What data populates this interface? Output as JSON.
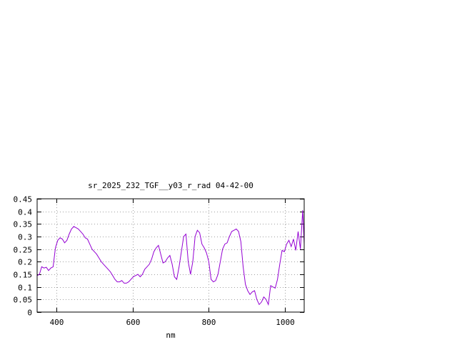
{
  "chart_data": {
    "type": "line",
    "title": "sr_2025_232_TGF__y03_r_rad 04-42-00",
    "xlabel": "nm",
    "ylabel": "",
    "xlim": [
      350,
      1050
    ],
    "ylim": [
      0,
      0.45
    ],
    "xticks": [
      400,
      600,
      800,
      1000
    ],
    "xtick_labels": [
      "400",
      "600",
      "800",
      "1000"
    ],
    "yticks": [
      0,
      0.05,
      0.1,
      0.15,
      0.2,
      0.25,
      0.3,
      0.35,
      0.4,
      0.45
    ],
    "ytick_labels": [
      "0",
      "0.05",
      "0.1",
      "0.15",
      "0.2",
      "0.25",
      "0.3",
      "0.35",
      "0.4",
      "0.45"
    ],
    "grid": true,
    "legend": "none",
    "series": [
      {
        "color": "#9400d3",
        "x": [
          350,
          356,
          362,
          368,
          374,
          380,
          386,
          392,
          398,
          404,
          410,
          416,
          422,
          428,
          434,
          440,
          446,
          452,
          458,
          464,
          470,
          476,
          482,
          488,
          494,
          500,
          506,
          512,
          518,
          524,
          530,
          536,
          542,
          548,
          554,
          560,
          566,
          572,
          578,
          584,
          590,
          596,
          602,
          608,
          614,
          620,
          626,
          632,
          638,
          644,
          650,
          656,
          662,
          668,
          674,
          680,
          686,
          692,
          698,
          704,
          710,
          716,
          722,
          728,
          734,
          740,
          746,
          752,
          758,
          764,
          770,
          776,
          782,
          788,
          794,
          800,
          806,
          812,
          818,
          824,
          830,
          836,
          842,
          848,
          854,
          860,
          866,
          872,
          878,
          884,
          890,
          896,
          902,
          908,
          914,
          920,
          926,
          932,
          938,
          944,
          950,
          956,
          962,
          968,
          974,
          980,
          986,
          992,
          998,
          1004,
          1010,
          1016,
          1022,
          1028,
          1034,
          1040,
          1046,
          1050
        ],
        "y": [
          0.145,
          0.15,
          0.18,
          0.175,
          0.178,
          0.165,
          0.175,
          0.18,
          0.255,
          0.285,
          0.295,
          0.29,
          0.275,
          0.285,
          0.31,
          0.33,
          0.34,
          0.335,
          0.33,
          0.32,
          0.31,
          0.295,
          0.29,
          0.27,
          0.25,
          0.24,
          0.23,
          0.215,
          0.2,
          0.19,
          0.18,
          0.17,
          0.16,
          0.145,
          0.13,
          0.12,
          0.12,
          0.125,
          0.115,
          0.115,
          0.12,
          0.13,
          0.14,
          0.145,
          0.15,
          0.14,
          0.15,
          0.17,
          0.18,
          0.19,
          0.21,
          0.24,
          0.255,
          0.265,
          0.23,
          0.195,
          0.2,
          0.215,
          0.225,
          0.19,
          0.14,
          0.13,
          0.18,
          0.24,
          0.3,
          0.31,
          0.2,
          0.15,
          0.2,
          0.3,
          0.325,
          0.315,
          0.27,
          0.255,
          0.235,
          0.2,
          0.13,
          0.12,
          0.125,
          0.15,
          0.2,
          0.25,
          0.27,
          0.275,
          0.3,
          0.32,
          0.325,
          0.33,
          0.32,
          0.28,
          0.18,
          0.11,
          0.085,
          0.07,
          0.08,
          0.085,
          0.05,
          0.03,
          0.04,
          0.06,
          0.05,
          0.03,
          0.105,
          0.1,
          0.095,
          0.13,
          0.19,
          0.245,
          0.24,
          0.27,
          0.285,
          0.26,
          0.29,
          0.245,
          0.32,
          0.25,
          0.405,
          0.27
        ]
      }
    ]
  }
}
